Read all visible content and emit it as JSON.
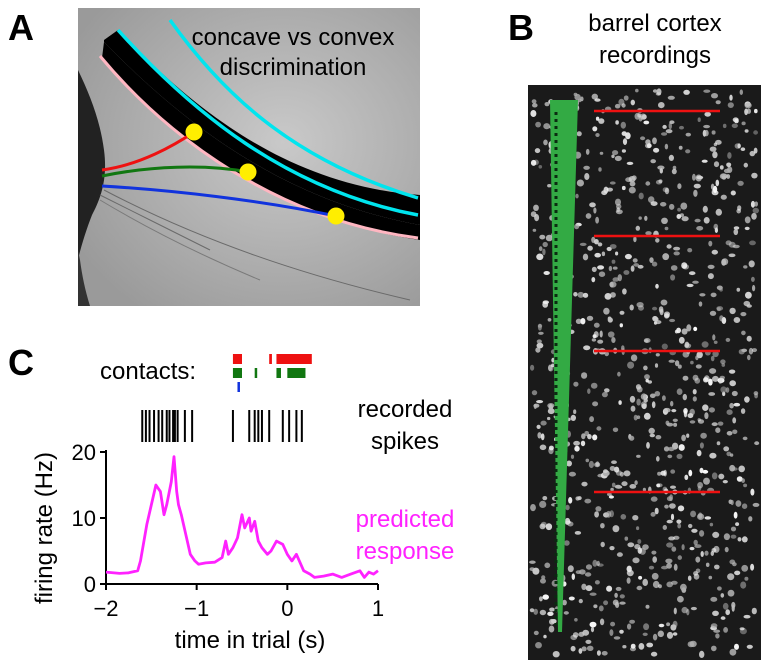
{
  "panel_a": {
    "letter": "A",
    "title_line1": "concave vs convex",
    "title_line2": "discrimination"
  },
  "panel_b": {
    "letter": "B",
    "title_line1": "barrel cortex",
    "title_line2": "recordings"
  },
  "panel_c": {
    "letter": "C",
    "contacts_label": "contacts:",
    "spikes_label_line1": "recorded",
    "spikes_label_line2": "spikes",
    "predicted_label_line1": "predicted",
    "predicted_label_line2": "response"
  },
  "colors": {
    "whisker_1": "#ee1111",
    "whisker_2": "#117711",
    "whisker_3": "#1133dd",
    "contact_point": "#ffee00",
    "surface_edge": "#00e5ee",
    "predicted": "#ff22ff",
    "probe": "#33aa44",
    "layer_line": "#ee1111"
  },
  "chart_data": {
    "type": "line",
    "xlabel": "time in trial (s)",
    "ylabel": "firing rate (Hz)",
    "xlim": [
      -2,
      1
    ],
    "ylim": [
      0,
      20
    ],
    "xticks": [
      -2,
      -1,
      0,
      1
    ],
    "xtick_labels": [
      "−2",
      "−1",
      "0",
      "1"
    ],
    "yticks": [
      0,
      10,
      20
    ],
    "ytick_labels": [
      "0",
      "10",
      "20"
    ],
    "series": [
      {
        "name": "predicted response",
        "x": [
          -2.0,
          -1.85,
          -1.75,
          -1.65,
          -1.62,
          -1.55,
          -1.45,
          -1.4,
          -1.36,
          -1.33,
          -1.28,
          -1.25,
          -1.22,
          -1.2,
          -1.17,
          -1.12,
          -1.07,
          -1.02,
          -0.98,
          -0.9,
          -0.8,
          -0.72,
          -0.68,
          -0.65,
          -0.6,
          -0.55,
          -0.5,
          -0.47,
          -0.42,
          -0.4,
          -0.36,
          -0.32,
          -0.28,
          -0.22,
          -0.18,
          -0.12,
          -0.05,
          0.0,
          0.05,
          0.1,
          0.18,
          0.25,
          0.3,
          0.4,
          0.5,
          0.6,
          0.7,
          0.8,
          0.85,
          0.9,
          0.95,
          1.0
        ],
        "y": [
          1.8,
          1.6,
          1.7,
          2.0,
          3.5,
          9.0,
          15.0,
          14.0,
          10.5,
          12.0,
          15.5,
          19.3,
          14.0,
          12.0,
          10.5,
          7.5,
          4.5,
          3.5,
          3.0,
          3.2,
          3.3,
          4.0,
          6.5,
          4.5,
          5.5,
          7.0,
          10.5,
          8.5,
          10.0,
          8.0,
          9.5,
          6.5,
          5.5,
          4.5,
          5.0,
          6.5,
          6.0,
          4.5,
          3.5,
          4.5,
          2.0,
          1.5,
          1.0,
          1.2,
          1.5,
          1.0,
          1.5,
          2.0,
          1.0,
          1.8,
          1.5,
          2.0
        ]
      }
    ],
    "spikes": [
      -1.6,
      -1.56,
      -1.52,
      -1.47,
      -1.42,
      -1.38,
      -1.33,
      -1.3,
      -1.26,
      -1.24,
      -1.21,
      -1.13,
      -1.05,
      -0.6,
      -0.42,
      -0.36,
      -0.32,
      -0.28,
      -0.2,
      -0.05,
      0.02,
      0.1,
      0.16
    ],
    "contacts": {
      "whisker_1": [
        [
          -0.6,
          -0.5
        ],
        [
          -0.2,
          -0.17
        ],
        [
          -0.12,
          0.27
        ]
      ],
      "whisker_2": [
        [
          -0.6,
          -0.5
        ],
        [
          -0.36,
          -0.34
        ],
        [
          -0.12,
          -0.07
        ],
        [
          0.0,
          0.2
        ]
      ],
      "whisker_3": [
        [
          -0.55,
          -0.53
        ]
      ]
    }
  }
}
